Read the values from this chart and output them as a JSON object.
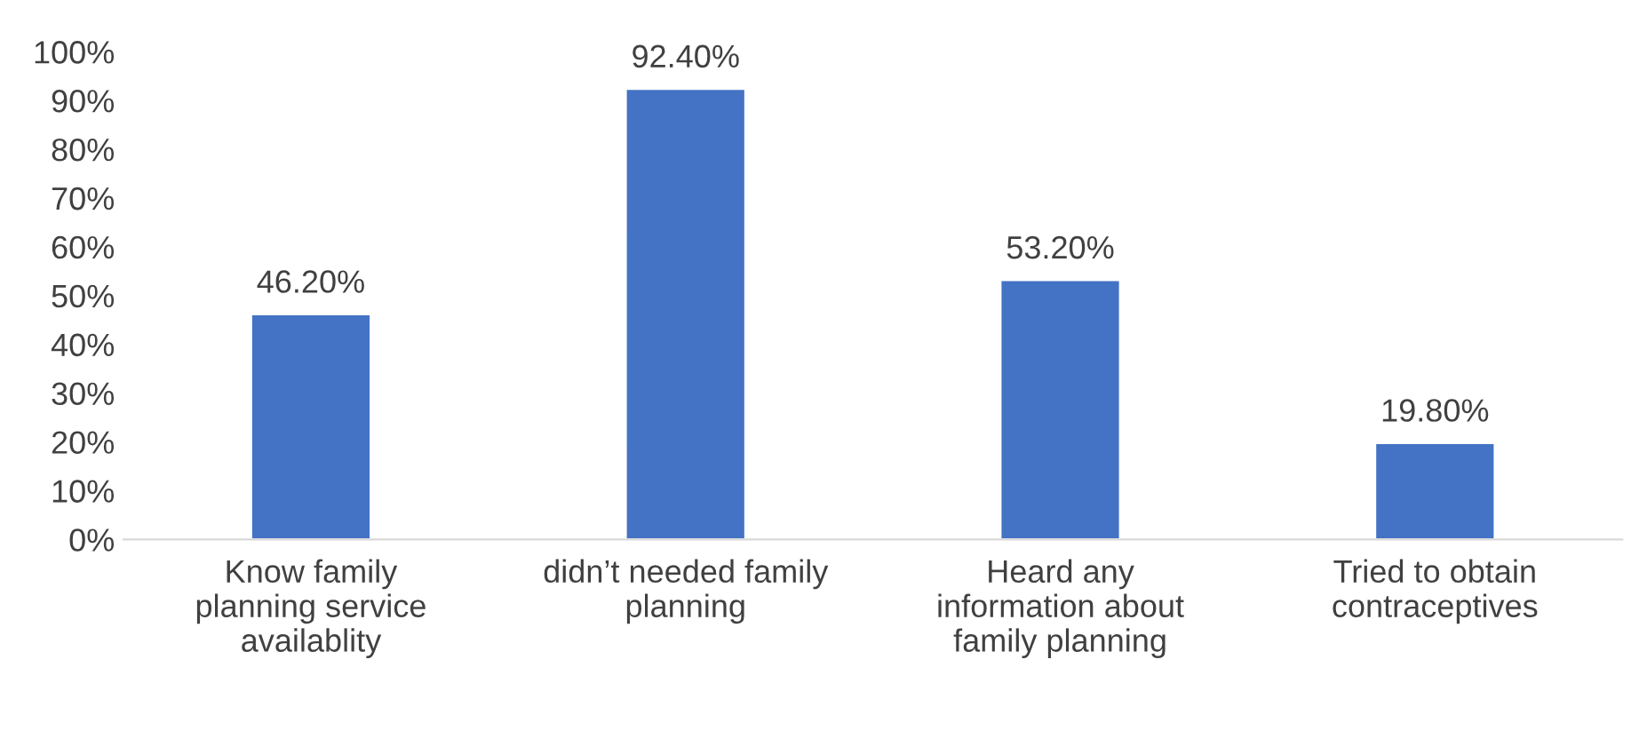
{
  "chart_data": {
    "type": "bar",
    "categories": [
      "Know family\nplanning service\navailablity",
      "didn’t needed family\nplanning",
      "Heard any\ninformation about\nfamily planning",
      "Tried to obtain\ncontraceptives"
    ],
    "values": [
      46.2,
      92.4,
      53.2,
      19.8
    ],
    "value_labels": [
      "46.20%",
      "92.40%",
      "53.20%",
      "19.80%"
    ],
    "color": "#4472c4",
    "ylim": [
      0,
      100
    ],
    "yticks": [
      {
        "value": 0,
        "label": "0%"
      },
      {
        "value": 10,
        "label": "10%"
      },
      {
        "value": 20,
        "label": "20%"
      },
      {
        "value": 30,
        "label": "30%"
      },
      {
        "value": 40,
        "label": "40%"
      },
      {
        "value": 50,
        "label": "50%"
      },
      {
        "value": 60,
        "label": "60%"
      },
      {
        "value": 70,
        "label": "70%"
      },
      {
        "value": 80,
        "label": "80%"
      },
      {
        "value": 90,
        "label": "90%"
      },
      {
        "value": 100,
        "label": "100%"
      }
    ],
    "grid": false
  }
}
